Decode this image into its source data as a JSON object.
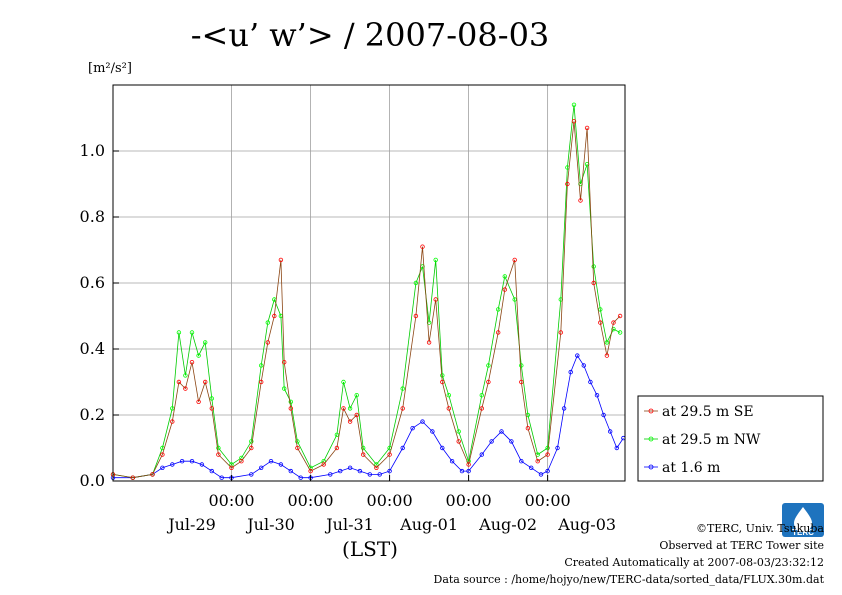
{
  "chart_data": {
    "type": "line",
    "title": "-<u’ w’> / 2007-08-03",
    "y_unit": "[m²/s²]",
    "xlabel": "(LST)",
    "ylim": [
      0.0,
      1.2
    ],
    "y_ticks": [
      "0.0",
      "0.2",
      "0.4",
      "0.6",
      "0.8",
      "1.0"
    ],
    "y_tick_values": [
      0.0,
      0.2,
      0.4,
      0.6,
      0.8,
      1.0
    ],
    "x_start": "2007-07-28 12:00",
    "x_end": "2007-08-03 23:30",
    "x_time_ticks": [
      "00:00",
      "00:00",
      "00:00",
      "00:00",
      "00:00"
    ],
    "x_time_tick_dates": [
      "2007-07-30 00:00",
      "2007-07-31 00:00",
      "2007-08-01 00:00",
      "2007-08-02 00:00",
      "2007-08-03 00:00"
    ],
    "x_date_labels": [
      "Jul-29",
      "Jul-30",
      "Jul-31",
      "Aug-01",
      "Aug-02",
      "Aug-03"
    ],
    "x_date_label_dates": [
      "2007-07-29 12:00",
      "2007-07-30 12:00",
      "2007-07-31 12:00",
      "2007-08-01 12:00",
      "2007-08-02 12:00",
      "2007-08-03 12:00"
    ],
    "grid": true,
    "legend_position": "right-bottom-outside",
    "series": [
      {
        "name": "at 29.5 m SE",
        "color": "#ff0000",
        "line_color": "#8b4513",
        "points": [
          [
            "2007-07-28 12:00",
            0.02
          ],
          [
            "2007-07-28 18:00",
            0.01
          ],
          [
            "2007-07-29 00:00",
            0.02
          ],
          [
            "2007-07-29 03:00",
            0.08
          ],
          [
            "2007-07-29 06:00",
            0.18
          ],
          [
            "2007-07-29 08:00",
            0.3
          ],
          [
            "2007-07-29 10:00",
            0.28
          ],
          [
            "2007-07-29 12:00",
            0.36
          ],
          [
            "2007-07-29 14:00",
            0.24
          ],
          [
            "2007-07-29 16:00",
            0.3
          ],
          [
            "2007-07-29 18:00",
            0.22
          ],
          [
            "2007-07-29 20:00",
            0.08
          ],
          [
            "2007-07-30 00:00",
            0.04
          ],
          [
            "2007-07-30 03:00",
            0.06
          ],
          [
            "2007-07-30 06:00",
            0.1
          ],
          [
            "2007-07-30 09:00",
            0.3
          ],
          [
            "2007-07-30 11:00",
            0.42
          ],
          [
            "2007-07-30 13:00",
            0.5
          ],
          [
            "2007-07-30 15:00",
            0.67
          ],
          [
            "2007-07-30 16:00",
            0.36
          ],
          [
            "2007-07-30 18:00",
            0.22
          ],
          [
            "2007-07-30 20:00",
            0.1
          ],
          [
            "2007-07-31 00:00",
            0.03
          ],
          [
            "2007-07-31 04:00",
            0.05
          ],
          [
            "2007-07-31 08:00",
            0.1
          ],
          [
            "2007-07-31 10:00",
            0.22
          ],
          [
            "2007-07-31 12:00",
            0.18
          ],
          [
            "2007-07-31 14:00",
            0.2
          ],
          [
            "2007-07-31 16:00",
            0.08
          ],
          [
            "2007-07-31 20:00",
            0.04
          ],
          [
            "2007-08-01 00:00",
            0.08
          ],
          [
            "2007-08-01 04:00",
            0.22
          ],
          [
            "2007-08-01 08:00",
            0.5
          ],
          [
            "2007-08-01 10:00",
            0.71
          ],
          [
            "2007-08-01 12:00",
            0.42
          ],
          [
            "2007-08-01 14:00",
            0.55
          ],
          [
            "2007-08-01 16:00",
            0.3
          ],
          [
            "2007-08-01 18:00",
            0.22
          ],
          [
            "2007-08-01 21:00",
            0.12
          ],
          [
            "2007-08-02 00:00",
            0.05
          ],
          [
            "2007-08-02 04:00",
            0.22
          ],
          [
            "2007-08-02 06:00",
            0.3
          ],
          [
            "2007-08-02 09:00",
            0.45
          ],
          [
            "2007-08-02 11:00",
            0.58
          ],
          [
            "2007-08-02 14:00",
            0.67
          ],
          [
            "2007-08-02 16:00",
            0.3
          ],
          [
            "2007-08-02 18:00",
            0.16
          ],
          [
            "2007-08-02 21:00",
            0.06
          ],
          [
            "2007-08-03 00:00",
            0.08
          ],
          [
            "2007-08-03 04:00",
            0.45
          ],
          [
            "2007-08-03 06:00",
            0.9
          ],
          [
            "2007-08-03 08:00",
            1.09
          ],
          [
            "2007-08-03 10:00",
            0.85
          ],
          [
            "2007-08-03 12:00",
            1.07
          ],
          [
            "2007-08-03 14:00",
            0.6
          ],
          [
            "2007-08-03 16:00",
            0.48
          ],
          [
            "2007-08-03 18:00",
            0.38
          ],
          [
            "2007-08-03 20:00",
            0.48
          ],
          [
            "2007-08-03 22:00",
            0.5
          ]
        ]
      },
      {
        "name": "at 29.5 m NW",
        "color": "#00ff00",
        "line_color": "#00cc00",
        "points": [
          [
            "2007-07-28 12:00",
            0.02
          ],
          [
            "2007-07-28 18:00",
            0.01
          ],
          [
            "2007-07-29 00:00",
            0.02
          ],
          [
            "2007-07-29 03:00",
            0.1
          ],
          [
            "2007-07-29 06:00",
            0.22
          ],
          [
            "2007-07-29 08:00",
            0.45
          ],
          [
            "2007-07-29 10:00",
            0.32
          ],
          [
            "2007-07-29 12:00",
            0.45
          ],
          [
            "2007-07-29 14:00",
            0.38
          ],
          [
            "2007-07-29 16:00",
            0.42
          ],
          [
            "2007-07-29 18:00",
            0.25
          ],
          [
            "2007-07-29 20:00",
            0.1
          ],
          [
            "2007-07-30 00:00",
            0.05
          ],
          [
            "2007-07-30 03:00",
            0.07
          ],
          [
            "2007-07-30 06:00",
            0.12
          ],
          [
            "2007-07-30 09:00",
            0.35
          ],
          [
            "2007-07-30 11:00",
            0.48
          ],
          [
            "2007-07-30 13:00",
            0.55
          ],
          [
            "2007-07-30 15:00",
            0.5
          ],
          [
            "2007-07-30 16:00",
            0.28
          ],
          [
            "2007-07-30 18:00",
            0.24
          ],
          [
            "2007-07-30 20:00",
            0.12
          ],
          [
            "2007-07-31 00:00",
            0.04
          ],
          [
            "2007-07-31 04:00",
            0.06
          ],
          [
            "2007-07-31 08:00",
            0.14
          ],
          [
            "2007-07-31 10:00",
            0.3
          ],
          [
            "2007-07-31 12:00",
            0.22
          ],
          [
            "2007-07-31 14:00",
            0.26
          ],
          [
            "2007-07-31 16:00",
            0.1
          ],
          [
            "2007-07-31 20:00",
            0.05
          ],
          [
            "2007-08-01 00:00",
            0.1
          ],
          [
            "2007-08-01 04:00",
            0.28
          ],
          [
            "2007-08-01 08:00",
            0.6
          ],
          [
            "2007-08-01 10:00",
            0.65
          ],
          [
            "2007-08-01 12:00",
            0.48
          ],
          [
            "2007-08-01 14:00",
            0.67
          ],
          [
            "2007-08-01 16:00",
            0.32
          ],
          [
            "2007-08-01 18:00",
            0.26
          ],
          [
            "2007-08-01 21:00",
            0.15
          ],
          [
            "2007-08-02 00:00",
            0.06
          ],
          [
            "2007-08-02 04:00",
            0.26
          ],
          [
            "2007-08-02 06:00",
            0.35
          ],
          [
            "2007-08-02 09:00",
            0.52
          ],
          [
            "2007-08-02 11:00",
            0.62
          ],
          [
            "2007-08-02 14:00",
            0.55
          ],
          [
            "2007-08-02 16:00",
            0.35
          ],
          [
            "2007-08-02 18:00",
            0.2
          ],
          [
            "2007-08-02 21:00",
            0.08
          ],
          [
            "2007-08-03 00:00",
            0.1
          ],
          [
            "2007-08-03 04:00",
            0.55
          ],
          [
            "2007-08-03 06:00",
            0.95
          ],
          [
            "2007-08-03 08:00",
            1.14
          ],
          [
            "2007-08-03 10:00",
            0.9
          ],
          [
            "2007-08-03 12:00",
            0.96
          ],
          [
            "2007-08-03 14:00",
            0.65
          ],
          [
            "2007-08-03 16:00",
            0.52
          ],
          [
            "2007-08-03 18:00",
            0.42
          ],
          [
            "2007-08-03 20:00",
            0.46
          ],
          [
            "2007-08-03 22:00",
            0.45
          ]
        ]
      },
      {
        "name": "at 1.6 m",
        "color": "#0000ff",
        "line_color": "#0000ff",
        "points": [
          [
            "2007-07-28 12:00",
            0.01
          ],
          [
            "2007-07-28 18:00",
            0.01
          ],
          [
            "2007-07-29 00:00",
            0.02
          ],
          [
            "2007-07-29 03:00",
            0.04
          ],
          [
            "2007-07-29 06:00",
            0.05
          ],
          [
            "2007-07-29 09:00",
            0.06
          ],
          [
            "2007-07-29 12:00",
            0.06
          ],
          [
            "2007-07-29 15:00",
            0.05
          ],
          [
            "2007-07-29 18:00",
            0.03
          ],
          [
            "2007-07-29 21:00",
            0.01
          ],
          [
            "2007-07-30 00:00",
            0.01
          ],
          [
            "2007-07-30 06:00",
            0.02
          ],
          [
            "2007-07-30 09:00",
            0.04
          ],
          [
            "2007-07-30 12:00",
            0.06
          ],
          [
            "2007-07-30 15:00",
            0.05
          ],
          [
            "2007-07-30 18:00",
            0.03
          ],
          [
            "2007-07-30 21:00",
            0.01
          ],
          [
            "2007-07-31 00:00",
            0.01
          ],
          [
            "2007-07-31 06:00",
            0.02
          ],
          [
            "2007-07-31 09:00",
            0.03
          ],
          [
            "2007-07-31 12:00",
            0.04
          ],
          [
            "2007-07-31 15:00",
            0.03
          ],
          [
            "2007-07-31 18:00",
            0.02
          ],
          [
            "2007-07-31 21:00",
            0.02
          ],
          [
            "2007-08-01 00:00",
            0.03
          ],
          [
            "2007-08-01 04:00",
            0.1
          ],
          [
            "2007-08-01 07:00",
            0.16
          ],
          [
            "2007-08-01 10:00",
            0.18
          ],
          [
            "2007-08-01 13:00",
            0.15
          ],
          [
            "2007-08-01 16:00",
            0.1
          ],
          [
            "2007-08-01 19:00",
            0.06
          ],
          [
            "2007-08-01 22:00",
            0.03
          ],
          [
            "2007-08-02 00:00",
            0.03
          ],
          [
            "2007-08-02 04:00",
            0.08
          ],
          [
            "2007-08-02 07:00",
            0.12
          ],
          [
            "2007-08-02 10:00",
            0.15
          ],
          [
            "2007-08-02 13:00",
            0.12
          ],
          [
            "2007-08-02 16:00",
            0.06
          ],
          [
            "2007-08-02 19:00",
            0.04
          ],
          [
            "2007-08-02 22:00",
            0.02
          ],
          [
            "2007-08-03 00:00",
            0.03
          ],
          [
            "2007-08-03 03:00",
            0.1
          ],
          [
            "2007-08-03 05:00",
            0.22
          ],
          [
            "2007-08-03 07:00",
            0.33
          ],
          [
            "2007-08-03 09:00",
            0.38
          ],
          [
            "2007-08-03 11:00",
            0.35
          ],
          [
            "2007-08-03 13:00",
            0.3
          ],
          [
            "2007-08-03 15:00",
            0.26
          ],
          [
            "2007-08-03 17:00",
            0.2
          ],
          [
            "2007-08-03 19:00",
            0.15
          ],
          [
            "2007-08-03 21:00",
            0.1
          ],
          [
            "2007-08-03 23:00",
            0.13
          ]
        ]
      }
    ]
  },
  "footer": {
    "copyright": "©TERC, Univ. Tsukuba",
    "observed": "Observed at TERC Tower site",
    "created": "Created Automatically at 2007-08-03/23:32:12",
    "source": "Data source : /home/hojyo/new/TERC-data/sorted_data/FLUX.30m.dat",
    "logo_text": "TERC"
  }
}
